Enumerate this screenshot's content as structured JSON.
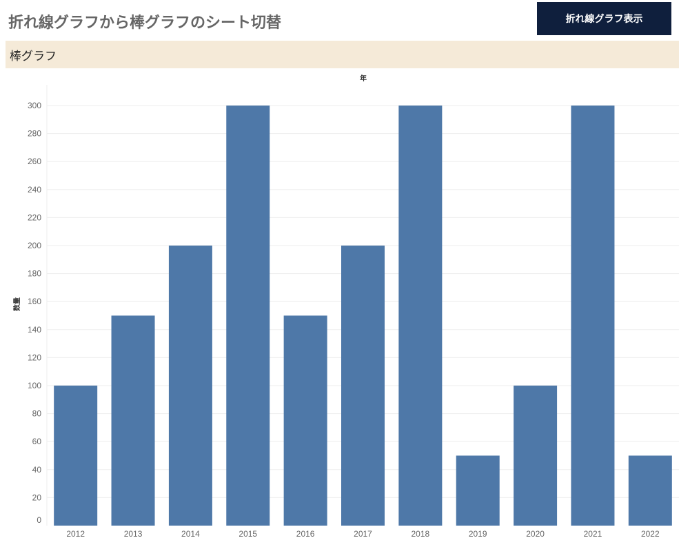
{
  "header": {
    "title": "折れ線グラフから棒グラフのシート切替",
    "button_label": "折れ線グラフ表示"
  },
  "section": {
    "label": "棒グラフ"
  },
  "colors": {
    "bar": "#4e78a8",
    "button_bg": "#0f1f3d",
    "section_bg": "#f5ead8",
    "gridline": "#eeeeee"
  },
  "chart_data": {
    "type": "bar",
    "xlabel": "年",
    "ylabel": "数量",
    "categories": [
      "2012",
      "2013",
      "2014",
      "2015",
      "2016",
      "2017",
      "2018",
      "2019",
      "2020",
      "2021",
      "2022"
    ],
    "values": [
      100,
      150,
      200,
      300,
      150,
      200,
      300,
      50,
      100,
      300,
      50
    ],
    "ylim": [
      0,
      310
    ],
    "yticks": [
      0,
      20,
      40,
      60,
      80,
      100,
      120,
      140,
      160,
      180,
      200,
      220,
      240,
      260,
      280,
      300
    ],
    "grid": true
  }
}
